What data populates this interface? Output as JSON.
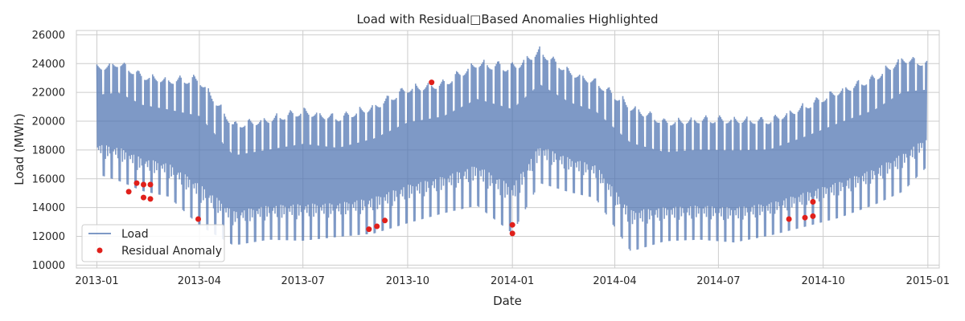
{
  "chart_data": {
    "type": "line",
    "title": "Load with Residual□Based Anomalies Highlighted",
    "xlabel": "Date",
    "ylabel": "Load (MWh)",
    "grid": true,
    "legend_placement": "bottom-left",
    "xlim": [
      "2012-12-14",
      "2015-01-11"
    ],
    "ylim": [
      9800,
      26300
    ],
    "x_ticks": [
      "2013-01",
      "2013-04",
      "2013-07",
      "2013-10",
      "2014-01",
      "2014-04",
      "2014-07",
      "2014-10",
      "2015-01"
    ],
    "y_ticks": [
      10000,
      12000,
      14000,
      16000,
      18000,
      20000,
      22000,
      24000,
      26000
    ],
    "series": [
      {
        "name": "Load",
        "color": "#4c72b0",
        "type": "line",
        "data_summary": {
          "x_start": "2013-01-01",
          "x_end": "2014-12-31",
          "envelope": [
            {
              "x": "2013-01-01",
              "min": 16000,
              "max": 24100
            },
            {
              "x": "2013-01-20",
              "min": 15500,
              "max": 24500
            },
            {
              "x": "2013-02-10",
              "min": 14800,
              "max": 23600
            },
            {
              "x": "2013-03-05",
              "min": 14400,
              "max": 23300
            },
            {
              "x": "2013-04-01",
              "min": 12300,
              "max": 23500
            },
            {
              "x": "2013-05-01",
              "min": 11000,
              "max": 20200
            },
            {
              "x": "2013-06-01",
              "min": 11400,
              "max": 20600
            },
            {
              "x": "2013-07-01",
              "min": 11300,
              "max": 21200
            },
            {
              "x": "2013-08-01",
              "min": 11600,
              "max": 20700
            },
            {
              "x": "2013-09-01",
              "min": 11800,
              "max": 21500
            },
            {
              "x": "2013-10-01",
              "min": 12500,
              "max": 22800
            },
            {
              "x": "2013-11-01",
              "min": 13200,
              "max": 23100
            },
            {
              "x": "2013-12-01",
              "min": 13700,
              "max": 24600
            },
            {
              "x": "2014-01-01",
              "min": 11700,
              "max": 24400
            },
            {
              "x": "2014-01-25",
              "min": 15300,
              "max": 25400
            },
            {
              "x": "2014-02-20",
              "min": 14700,
              "max": 23900
            },
            {
              "x": "2014-03-15",
              "min": 14300,
              "max": 23200
            },
            {
              "x": "2014-04-15",
              "min": 10500,
              "max": 21600
            },
            {
              "x": "2014-05-15",
              "min": 11300,
              "max": 20400
            },
            {
              "x": "2014-06-15",
              "min": 11400,
              "max": 20600
            },
            {
              "x": "2014-07-15",
              "min": 11200,
              "max": 20600
            },
            {
              "x": "2014-08-15",
              "min": 11700,
              "max": 20500
            },
            {
              "x": "2014-09-15",
              "min": 12300,
              "max": 21500
            },
            {
              "x": "2014-10-15",
              "min": 12900,
              "max": 22600
            },
            {
              "x": "2014-11-15",
              "min": 13800,
              "max": 23500
            },
            {
              "x": "2014-12-10",
              "min": 14700,
              "max": 24900
            },
            {
              "x": "2014-12-31",
              "min": 16500,
              "max": 24400
            }
          ]
        }
      },
      {
        "name": "Residual Anomaly",
        "color": "#e0201b",
        "type": "scatter",
        "points": [
          {
            "x": "2013-01-29",
            "y": 15100
          },
          {
            "x": "2013-02-05",
            "y": 15700
          },
          {
            "x": "2013-02-11",
            "y": 15600
          },
          {
            "x": "2013-02-11",
            "y": 14700
          },
          {
            "x": "2013-02-17",
            "y": 15600
          },
          {
            "x": "2013-02-17",
            "y": 14600
          },
          {
            "x": "2013-03-31",
            "y": 13200
          },
          {
            "x": "2013-08-28",
            "y": 12500
          },
          {
            "x": "2013-09-04",
            "y": 12700
          },
          {
            "x": "2013-09-11",
            "y": 13100
          },
          {
            "x": "2013-10-22",
            "y": 22700
          },
          {
            "x": "2014-01-01",
            "y": 12800
          },
          {
            "x": "2014-01-01",
            "y": 12200
          },
          {
            "x": "2014-09-01",
            "y": 13200
          },
          {
            "x": "2014-09-15",
            "y": 13300
          },
          {
            "x": "2014-09-22",
            "y": 13400
          },
          {
            "x": "2014-09-22",
            "y": 14400
          }
        ]
      }
    ]
  }
}
